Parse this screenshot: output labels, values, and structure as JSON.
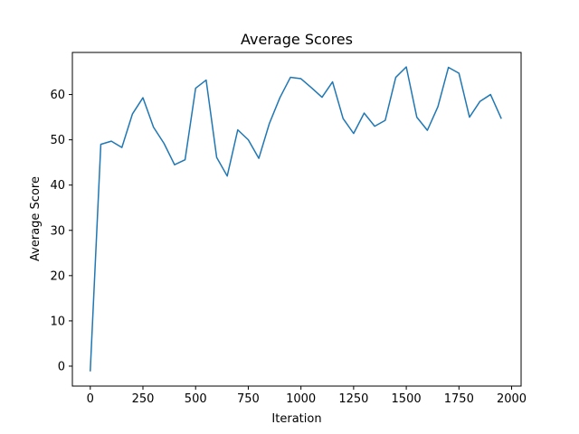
{
  "chart_data": {
    "type": "line",
    "title": "Average Scores",
    "xlabel": "Iteration",
    "ylabel": "Average Score",
    "xlim": [
      -85,
      2045
    ],
    "ylim": [
      -4.4,
      69.3
    ],
    "xticks": [
      0,
      250,
      500,
      750,
      1000,
      1250,
      1500,
      1750,
      2000
    ],
    "yticks": [
      0,
      10,
      20,
      30,
      40,
      50,
      60
    ],
    "grid": false,
    "colors": {
      "line": "#1f77b4",
      "axes": "#000000",
      "background": "#ffffff"
    },
    "series": [
      {
        "x": [
          0,
          50,
          100,
          150,
          200,
          250,
          300,
          350,
          400,
          450,
          500,
          550,
          600,
          650,
          700,
          750,
          800,
          850,
          900,
          950,
          1000,
          1050,
          1100,
          1150,
          1200,
          1250,
          1300,
          1350,
          1400,
          1450,
          1500,
          1550,
          1600,
          1650,
          1700,
          1750,
          1800,
          1850,
          1900,
          1950
        ],
        "values": [
          -1.0,
          49.0,
          49.7,
          48.3,
          55.7,
          59.3,
          52.8,
          49.2,
          44.5,
          45.6,
          61.4,
          63.2,
          46.1,
          42.0,
          52.2,
          50.0,
          45.9,
          53.6,
          59.3,
          63.8,
          63.5,
          61.5,
          59.4,
          62.8,
          54.7,
          51.4,
          55.9,
          53.0,
          54.3,
          63.8,
          66.1,
          55.0,
          52.1,
          57.3,
          66.0,
          64.7,
          55.0,
          58.5,
          60.0,
          54.8
        ]
      }
    ]
  }
}
